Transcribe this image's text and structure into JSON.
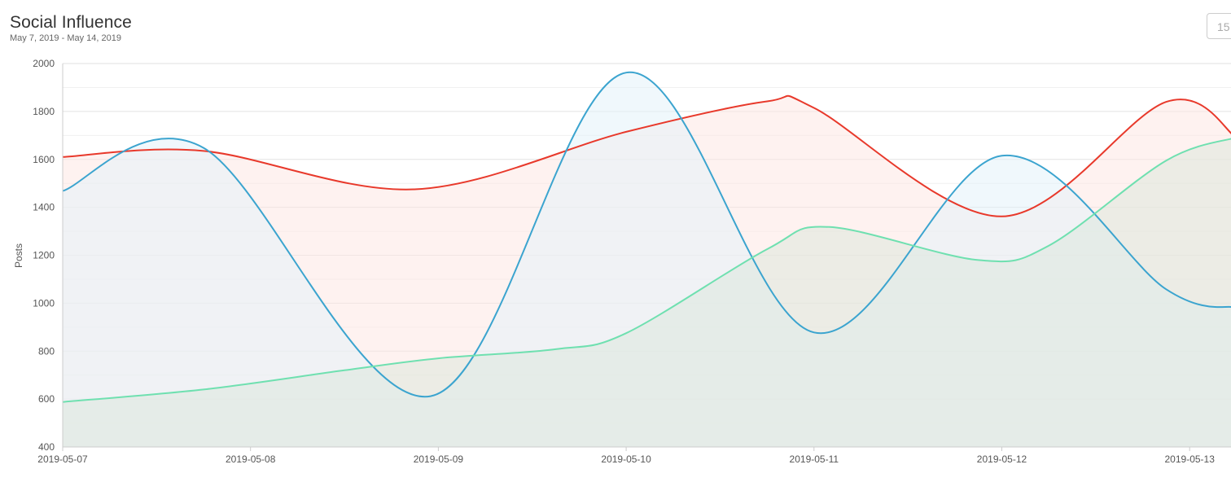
{
  "header": {
    "title": "Social Influence",
    "subtitle": "May 7, 2019 - May 14, 2019",
    "range_value": "15"
  },
  "chart_data": {
    "type": "area",
    "title": "Social Influence",
    "subtitle": "May 7, 2019 - May 14, 2019",
    "xlabel": "",
    "ylabel": "Posts",
    "ylim": [
      400,
      2000
    ],
    "yticks": [
      400,
      600,
      800,
      1000,
      1200,
      1400,
      1600,
      1800,
      2000
    ],
    "x_ticks": [
      "2019-05-07",
      "2019-05-08",
      "2019-05-09",
      "2019-05-10",
      "2019-05-11",
      "2019-05-12",
      "2019-05-13"
    ],
    "grid": true,
    "legend": "none",
    "series": [
      {
        "color": "#e8392b",
        "fill": "#fde7e4",
        "points": [
          [
            "2019-05-07",
            1610
          ],
          [
            "2019-05-07 18:00",
            1635
          ],
          [
            "2019-05-08 21:00",
            1475
          ],
          [
            "2019-05-10",
            1715
          ],
          [
            "2019-05-10 18:00",
            1842
          ],
          [
            "2019-05-11",
            1815
          ],
          [
            "2019-05-12",
            1362
          ],
          [
            "2019-05-12 21:00",
            1840
          ],
          [
            "2019-05-13 06:00",
            1690
          ]
        ]
      },
      {
        "color": "#3ba4cf",
        "fill": "#e3f3fa",
        "points": [
          [
            "2019-05-07",
            1468
          ],
          [
            "2019-05-07 18:00",
            1648
          ],
          [
            "2019-05-08 23:00",
            612
          ],
          [
            "2019-05-10",
            1962
          ],
          [
            "2019-05-11",
            878
          ],
          [
            "2019-05-12",
            1615
          ],
          [
            "2019-05-12 21:00",
            1058
          ],
          [
            "2019-05-13 06:00",
            982
          ]
        ]
      },
      {
        "color": "#6fe0b0",
        "fill": "#dde7dc",
        "points": [
          [
            "2019-05-07",
            588
          ],
          [
            "2019-05-07 18:00",
            640
          ],
          [
            "2019-05-08 12:00",
            720
          ],
          [
            "2019-05-09",
            770
          ],
          [
            "2019-05-09 15:00",
            808
          ],
          [
            "2019-05-10",
            875
          ],
          [
            "2019-05-10 18:00",
            1225
          ],
          [
            "2019-05-11 02:00",
            1318
          ],
          [
            "2019-05-11 21:00",
            1180
          ],
          [
            "2019-05-12 06:00",
            1240
          ],
          [
            "2019-05-12 21:00",
            1595
          ],
          [
            "2019-05-13 06:00",
            1692
          ]
        ]
      }
    ]
  }
}
